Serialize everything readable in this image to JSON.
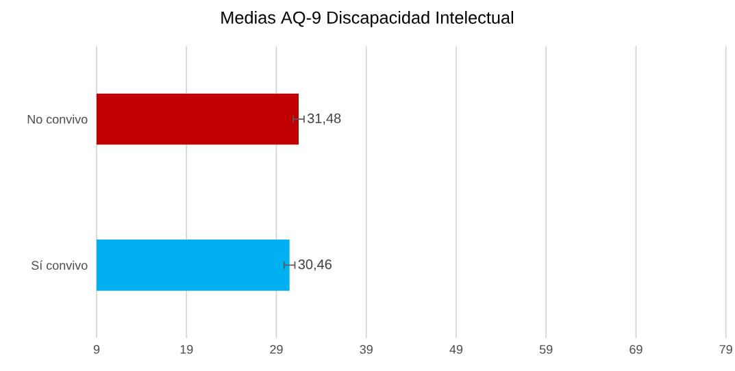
{
  "chart_data": {
    "type": "bar",
    "orientation": "horizontal",
    "title": "Medias AQ-9 Discapacidad Intelectual",
    "categories": [
      "No convivo",
      "Sí convivo"
    ],
    "values": [
      31.48,
      30.46
    ],
    "colors": [
      "#c00000",
      "#00b0f0"
    ],
    "errors": [
      0.6,
      0.6
    ],
    "value_labels": [
      "31,48",
      "30,46"
    ],
    "xlim": [
      9,
      79
    ],
    "xticks": [
      9,
      19,
      29,
      39,
      49,
      59,
      69,
      79
    ],
    "grid": "x"
  }
}
